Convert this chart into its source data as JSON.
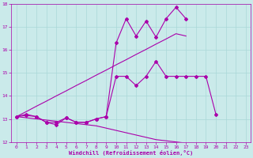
{
  "xlabel": "Windchill (Refroidissement éolien,°C)",
  "background_color": "#caeaea",
  "grid_color": "#aad8d8",
  "line_color": "#aa00aa",
  "x_hours": [
    0,
    1,
    2,
    3,
    4,
    5,
    6,
    7,
    8,
    9,
    10,
    11,
    12,
    13,
    14,
    15,
    16,
    17,
    18,
    19,
    20,
    21,
    22,
    23
  ],
  "line1_y": [
    13.1,
    13.2,
    13.1,
    12.85,
    12.75,
    13.05,
    12.85,
    12.85,
    13.0,
    13.1,
    16.3,
    17.35,
    16.6,
    17.25,
    16.55,
    17.35,
    17.85,
    17.35,
    null,
    null,
    null,
    null,
    null,
    null
  ],
  "line2_y": [
    13.1,
    13.15,
    13.1,
    12.85,
    12.85,
    13.05,
    12.85,
    12.85,
    13.0,
    13.1,
    14.85,
    14.85,
    14.45,
    14.85,
    15.5,
    14.85,
    14.85,
    14.85,
    14.85,
    14.85,
    13.2,
    null,
    null,
    null
  ],
  "trend_upper": [
    13.1,
    13.32,
    13.55,
    13.77,
    14.0,
    14.22,
    14.45,
    14.67,
    14.9,
    15.12,
    15.35,
    15.57,
    15.8,
    16.02,
    16.25,
    16.47,
    16.7,
    16.6,
    null,
    null,
    null,
    null,
    null,
    null
  ],
  "trend_lower": [
    13.1,
    13.05,
    13.0,
    12.95,
    12.9,
    12.85,
    12.8,
    12.75,
    12.7,
    12.6,
    12.5,
    12.4,
    12.3,
    12.2,
    12.1,
    12.05,
    12.0,
    11.95,
    11.9,
    11.85,
    11.8,
    11.78,
    11.76,
    11.75
  ],
  "ylim": [
    12,
    18
  ],
  "xlim": [
    -0.5,
    23.5
  ],
  "yticks": [
    12,
    13,
    14,
    15,
    16,
    17,
    18
  ],
  "xticks": [
    0,
    1,
    2,
    3,
    4,
    5,
    6,
    7,
    8,
    9,
    10,
    11,
    12,
    13,
    14,
    15,
    16,
    17,
    18,
    19,
    20,
    21,
    22,
    23
  ]
}
